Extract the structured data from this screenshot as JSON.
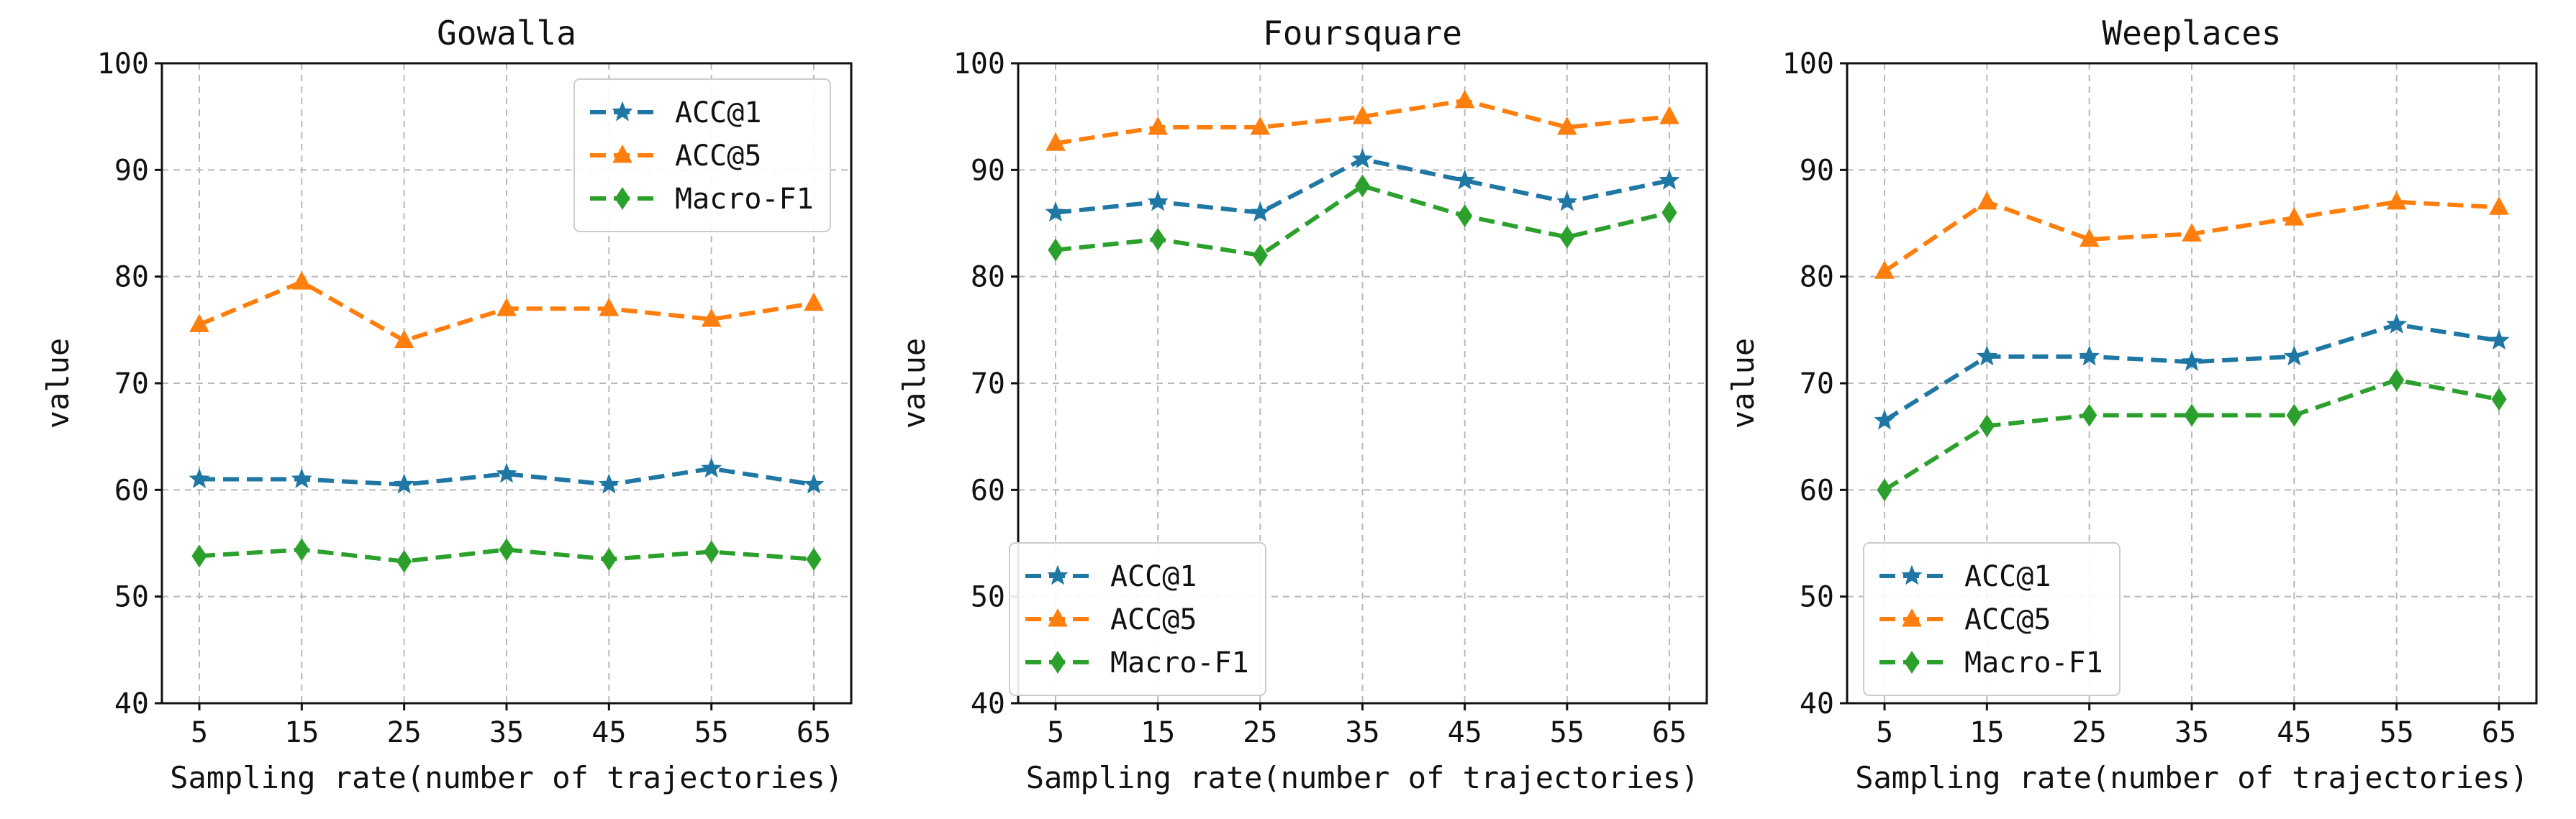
{
  "chart_data": [
    {
      "type": "line",
      "title": "Gowalla",
      "xlabel": "Sampling rate(number of trajectories)",
      "ylabel": "value",
      "x": [
        5,
        15,
        25,
        35,
        45,
        55,
        65
      ],
      "x_tick_labels": [
        "5",
        "15",
        "25",
        "35",
        "45",
        "55",
        "65"
      ],
      "ylim": [
        40,
        100
      ],
      "y_ticks": [
        40,
        50,
        60,
        70,
        80,
        90,
        100
      ],
      "y_tick_labels": [
        "40",
        "50",
        "60",
        "70",
        "80",
        "90",
        "100"
      ],
      "grid": true,
      "legend_position": "top-right",
      "series": [
        {
          "name": "ACC@1",
          "color": "#1f77a4",
          "marker": "star",
          "values": [
            61.0,
            61.0,
            60.5,
            61.5,
            60.5,
            62.0,
            60.5
          ]
        },
        {
          "name": "ACC@5",
          "color": "#ff7f0e",
          "marker": "triangle",
          "values": [
            75.5,
            79.5,
            74.0,
            77.0,
            77.0,
            76.0,
            77.5
          ]
        },
        {
          "name": "Macro-F1",
          "color": "#2ca02c",
          "marker": "diamond",
          "values": [
            53.8,
            54.4,
            53.3,
            54.4,
            53.5,
            54.2,
            53.5
          ]
        }
      ]
    },
    {
      "type": "line",
      "title": "Foursquare",
      "xlabel": "Sampling rate(number of trajectories)",
      "ylabel": "value",
      "x": [
        5,
        15,
        25,
        35,
        45,
        55,
        65
      ],
      "x_tick_labels": [
        "5",
        "15",
        "25",
        "35",
        "45",
        "55",
        "65"
      ],
      "ylim": [
        40,
        100
      ],
      "y_ticks": [
        40,
        50,
        60,
        70,
        80,
        90,
        100
      ],
      "y_tick_labels": [
        "40",
        "50",
        "60",
        "70",
        "80",
        "90",
        "100"
      ],
      "grid": true,
      "legend_position": "bottom-left",
      "series": [
        {
          "name": "ACC@1",
          "color": "#1f77a4",
          "marker": "star",
          "values": [
            86.0,
            87.0,
            86.0,
            91.0,
            89.0,
            87.0,
            89.0
          ]
        },
        {
          "name": "ACC@5",
          "color": "#ff7f0e",
          "marker": "triangle",
          "values": [
            92.5,
            94.0,
            94.0,
            95.0,
            96.5,
            94.0,
            95.0
          ]
        },
        {
          "name": "Macro-F1",
          "color": "#2ca02c",
          "marker": "diamond",
          "values": [
            82.5,
            83.5,
            82.0,
            88.5,
            85.7,
            83.7,
            86.0
          ]
        }
      ]
    },
    {
      "type": "line",
      "title": "Weeplaces",
      "xlabel": "Sampling rate(number of trajectories)",
      "ylabel": "value",
      "x": [
        5,
        15,
        25,
        35,
        45,
        55,
        65
      ],
      "x_tick_labels": [
        "5",
        "15",
        "25",
        "35",
        "45",
        "55",
        "65"
      ],
      "ylim": [
        40,
        100
      ],
      "y_ticks": [
        40,
        50,
        60,
        70,
        80,
        90,
        100
      ],
      "y_tick_labels": [
        "40",
        "50",
        "60",
        "70",
        "80",
        "90",
        "100"
      ],
      "grid": true,
      "legend_position": "bottom-left",
      "series": [
        {
          "name": "ACC@1",
          "color": "#1f77a4",
          "marker": "star",
          "values": [
            66.5,
            72.5,
            72.5,
            72.0,
            72.5,
            75.5,
            74.0
          ]
        },
        {
          "name": "ACC@5",
          "color": "#ff7f0e",
          "marker": "triangle",
          "values": [
            80.5,
            87.0,
            83.5,
            84.0,
            85.5,
            87.0,
            86.5
          ]
        },
        {
          "name": "Macro-F1",
          "color": "#2ca02c",
          "marker": "diamond",
          "values": [
            60.0,
            66.0,
            67.0,
            67.0,
            67.0,
            70.3,
            68.5
          ]
        }
      ]
    }
  ]
}
